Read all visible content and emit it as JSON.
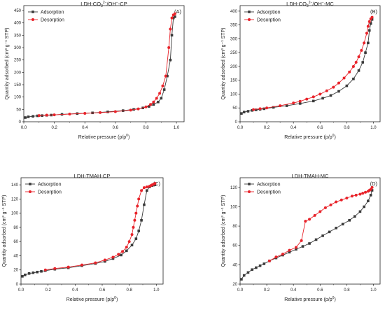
{
  "colors": {
    "adsorption": "#3a3a3a",
    "desorption": "#e8232a"
  },
  "chart_data": [
    {
      "type": "line",
      "id": "A",
      "title_main": "LDH-CO",
      "title_sub": "3",
      "title_sup": "2−",
      "title_tail": "/OH",
      "title_sup2": "−",
      "title_end": "-CP",
      "panel_label": "(A)",
      "xlabel": "Relative pressure (p/p",
      "xlabel_sup": "0",
      "xlabel_end": ")",
      "ylabel": "Quantity adsorbed (cm³ g⁻¹ STP)",
      "xlim": [
        0,
        1.05
      ],
      "ylim": [
        0,
        470
      ],
      "xticks": [
        "0.0",
        "0.2",
        "0.4",
        "0.6",
        "0.8",
        "1.0"
      ],
      "yticks": [
        0,
        50,
        100,
        150,
        200,
        250,
        300,
        350,
        400,
        450
      ],
      "legend": "top-left",
      "series": [
        {
          "name": "Adsorption",
          "marker": "square",
          "x": [
            0.01,
            0.03,
            0.06,
            0.09,
            0.12,
            0.15,
            0.18,
            0.25,
            0.35,
            0.45,
            0.55,
            0.65,
            0.72,
            0.78,
            0.82,
            0.85,
            0.88,
            0.9,
            0.92,
            0.94,
            0.96,
            0.97,
            0.98,
            0.99
          ],
          "y": [
            17,
            20,
            22,
            24,
            25,
            26,
            27,
            30,
            33,
            36,
            40,
            45,
            50,
            56,
            62,
            70,
            80,
            95,
            130,
            185,
            250,
            350,
            420,
            425
          ]
        },
        {
          "name": "Desorption",
          "marker": "circle",
          "x": [
            0.99,
            0.98,
            0.97,
            0.96,
            0.95,
            0.93,
            0.91,
            0.89,
            0.87,
            0.85,
            0.83,
            0.8,
            0.75,
            0.7,
            0.6,
            0.5,
            0.4,
            0.3,
            0.2,
            0.15,
            0.1
          ],
          "y": [
            437,
            432,
            420,
            375,
            300,
            185,
            145,
            115,
            95,
            80,
            70,
            60,
            52,
            47,
            41,
            37,
            34,
            31,
            28,
            27,
            25
          ]
        }
      ]
    },
    {
      "type": "line",
      "id": "B",
      "title_main": "LDH-CO",
      "title_sub": "3",
      "title_sup": "2−",
      "title_tail": "/OH",
      "title_sup2": "−",
      "title_end": "-MC",
      "panel_label": "(B)",
      "xlabel": "Relative pressure (p/p",
      "xlabel_sup": "0",
      "xlabel_end": ")",
      "ylabel": "Quantity adsorbed (cm³ g⁻¹ STP)",
      "xlim": [
        0,
        1.05
      ],
      "ylim": [
        0,
        420
      ],
      "xticks": [
        "0.0",
        "0.2",
        "0.4",
        "0.6",
        "0.8",
        "1.0"
      ],
      "yticks": [
        0,
        50,
        100,
        150,
        200,
        250,
        300,
        350,
        400
      ],
      "legend": "top-left",
      "series": [
        {
          "name": "Adsorption",
          "marker": "square",
          "x": [
            0.01,
            0.03,
            0.06,
            0.09,
            0.12,
            0.15,
            0.18,
            0.25,
            0.35,
            0.45,
            0.55,
            0.62,
            0.68,
            0.74,
            0.8,
            0.85,
            0.89,
            0.92,
            0.94,
            0.96,
            0.97,
            0.98,
            0.99
          ],
          "y": [
            30,
            35,
            38,
            41,
            43,
            45,
            47,
            52,
            58,
            66,
            75,
            85,
            95,
            110,
            130,
            155,
            185,
            215,
            250,
            285,
            330,
            355,
            370
          ]
        },
        {
          "name": "Desorption",
          "marker": "circle",
          "x": [
            0.99,
            0.98,
            0.97,
            0.96,
            0.95,
            0.93,
            0.91,
            0.89,
            0.87,
            0.85,
            0.82,
            0.78,
            0.74,
            0.7,
            0.65,
            0.6,
            0.55,
            0.5,
            0.45,
            0.4,
            0.3,
            0.2,
            0.15,
            0.1
          ],
          "y": [
            378,
            372,
            362,
            345,
            320,
            285,
            258,
            235,
            215,
            200,
            180,
            158,
            140,
            125,
            112,
            100,
            90,
            82,
            74,
            68,
            58,
            50,
            47,
            44
          ]
        }
      ]
    },
    {
      "type": "line",
      "id": "C",
      "title_main": "LDH-TMAH-CP",
      "panel_label": "(C)",
      "xlabel": "Relative pressure (p/p",
      "xlabel_sup": "0",
      "xlabel_end": ")",
      "ylabel": "Quantity adsorbed (cm³ g⁻¹ STP)",
      "xlim": [
        0,
        1.05
      ],
      "ylim": [
        0,
        150
      ],
      "xticks": [
        "0.0",
        "0.2",
        "0.4",
        "0.6",
        "0.8",
        "1.0"
      ],
      "yticks": [
        0,
        20,
        40,
        60,
        80,
        100,
        120,
        140
      ],
      "legend": "top-left",
      "series": [
        {
          "name": "Adsorption",
          "marker": "square",
          "x": [
            0.01,
            0.03,
            0.06,
            0.09,
            0.12,
            0.15,
            0.18,
            0.25,
            0.35,
            0.45,
            0.55,
            0.62,
            0.68,
            0.74,
            0.78,
            0.82,
            0.85,
            0.87,
            0.89,
            0.91,
            0.93,
            0.95,
            0.97,
            0.99
          ],
          "y": [
            11,
            13,
            15,
            16,
            17,
            18,
            19,
            21,
            23,
            26,
            29,
            32,
            36,
            41,
            47,
            55,
            64,
            75,
            90,
            112,
            132,
            137,
            139,
            140
          ]
        },
        {
          "name": "Desorption",
          "marker": "circle",
          "x": [
            0.99,
            0.98,
            0.97,
            0.96,
            0.95,
            0.93,
            0.91,
            0.89,
            0.87,
            0.86,
            0.85,
            0.84,
            0.83,
            0.82,
            0.8,
            0.78,
            0.75,
            0.72,
            0.68,
            0.62,
            0.55,
            0.45,
            0.35,
            0.25,
            0.18
          ],
          "y": [
            142,
            141,
            140,
            139,
            138,
            137,
            136,
            132,
            120,
            110,
            100,
            90,
            80,
            70,
            60,
            52,
            46,
            42,
            38,
            34,
            30,
            27,
            24,
            22,
            20
          ]
        }
      ]
    },
    {
      "type": "line",
      "id": "D",
      "title_main": "LDH-TMAH-MC",
      "panel_label": "(D)",
      "xlabel": "Relative pressure (p/p",
      "xlabel_sup": "0",
      "xlabel_end": ")",
      "ylabel": "Quantity adsorbed (cm³ g⁻¹ STP)",
      "xlim": [
        0,
        1.05
      ],
      "ylim": [
        20,
        130
      ],
      "xticks": [
        "0.0",
        "0.2",
        "0.4",
        "0.6",
        "0.8",
        "1.0"
      ],
      "yticks": [
        20,
        40,
        60,
        80,
        100,
        120
      ],
      "legend": "top-left",
      "series": [
        {
          "name": "Adsorption",
          "marker": "square",
          "x": [
            0.01,
            0.03,
            0.06,
            0.09,
            0.12,
            0.15,
            0.18,
            0.22,
            0.27,
            0.32,
            0.37,
            0.42,
            0.47,
            0.52,
            0.57,
            0.62,
            0.67,
            0.72,
            0.77,
            0.82,
            0.86,
            0.9,
            0.93,
            0.96,
            0.98,
            0.99
          ],
          "y": [
            25,
            29,
            32,
            35,
            37,
            39,
            41,
            44,
            47,
            50,
            53,
            56,
            59,
            62,
            66,
            70,
            74,
            78,
            82,
            86,
            90,
            95,
            100,
            106,
            112,
            117
          ]
        },
        {
          "name": "Desorption",
          "marker": "circle",
          "x": [
            0.99,
            0.98,
            0.97,
            0.96,
            0.94,
            0.92,
            0.9,
            0.87,
            0.84,
            0.8,
            0.76,
            0.72,
            0.68,
            0.64,
            0.6,
            0.56,
            0.52,
            0.49,
            0.46,
            0.42,
            0.37,
            0.32,
            0.27,
            0.22
          ],
          "y": [
            120,
            118,
            117,
            116,
            115,
            114,
            113,
            112,
            111,
            109,
            107,
            105,
            102,
            99,
            95,
            91,
            87,
            85,
            65,
            58,
            55,
            51,
            48,
            44
          ]
        }
      ]
    }
  ]
}
